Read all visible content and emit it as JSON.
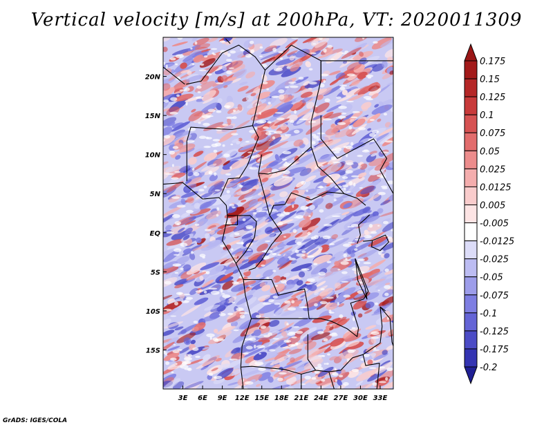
{
  "title": "Vertical velocity [m/s] at 200hPa, VT: 2020011309",
  "footer": "GrADS: IGES/COLA",
  "map": {
    "lon_range": [
      0,
      35
    ],
    "lat_range": [
      -20,
      25
    ],
    "lon_ticks": [
      {
        "value": 3,
        "label": "3E"
      },
      {
        "value": 6,
        "label": "6E"
      },
      {
        "value": 9,
        "label": "9E"
      },
      {
        "value": 12,
        "label": "12E"
      },
      {
        "value": 15,
        "label": "15E"
      },
      {
        "value": 18,
        "label": "18E"
      },
      {
        "value": 21,
        "label": "21E"
      },
      {
        "value": 24,
        "label": "24E"
      },
      {
        "value": 27,
        "label": "27E"
      },
      {
        "value": 30,
        "label": "30E"
      },
      {
        "value": 33,
        "label": "33E"
      }
    ],
    "lat_ticks": [
      {
        "value": 20,
        "label": "20N"
      },
      {
        "value": 15,
        "label": "15N"
      },
      {
        "value": 10,
        "label": "10N"
      },
      {
        "value": 5,
        "label": "5N"
      },
      {
        "value": 0,
        "label": "EQ"
      },
      {
        "value": -5,
        "label": "5S"
      },
      {
        "value": -10,
        "label": "10S"
      },
      {
        "value": -15,
        "label": "15S"
      }
    ],
    "field": "vertical velocity",
    "units": "m/s",
    "level": "200hPa",
    "valid_time": "2020011309"
  },
  "colorbar": {
    "levels": [
      {
        "label": "0.175",
        "color": "#a31a1a"
      },
      {
        "label": "0.15",
        "color": "#b52727"
      },
      {
        "label": "0.125",
        "color": "#c83a3a"
      },
      {
        "label": "0.1",
        "color": "#d65252"
      },
      {
        "label": "0.075",
        "color": "#e26c6c"
      },
      {
        "label": "0.05",
        "color": "#ec8c8c"
      },
      {
        "label": "0.025",
        "color": "#f4adad"
      },
      {
        "label": "0.0125",
        "color": "#f9cccc"
      },
      {
        "label": "0.005",
        "color": "#fde4e4"
      },
      {
        "label": "-0.005",
        "color": "#ffffff"
      },
      {
        "label": "-0.0125",
        "color": "#dcdcf8"
      },
      {
        "label": "-0.025",
        "color": "#bcbcf2"
      },
      {
        "label": "-0.05",
        "color": "#9d9dea"
      },
      {
        "label": "-0.075",
        "color": "#7e7ee2"
      },
      {
        "label": "-0.1",
        "color": "#6464d6"
      },
      {
        "label": "-0.125",
        "color": "#4c4cc6"
      },
      {
        "label": "-0.175",
        "color": "#3434b2"
      },
      {
        "label": "-0.2",
        "color": "#24249e"
      }
    ],
    "top_color": "#9a1616",
    "bottom_color": "#1f1f94"
  }
}
